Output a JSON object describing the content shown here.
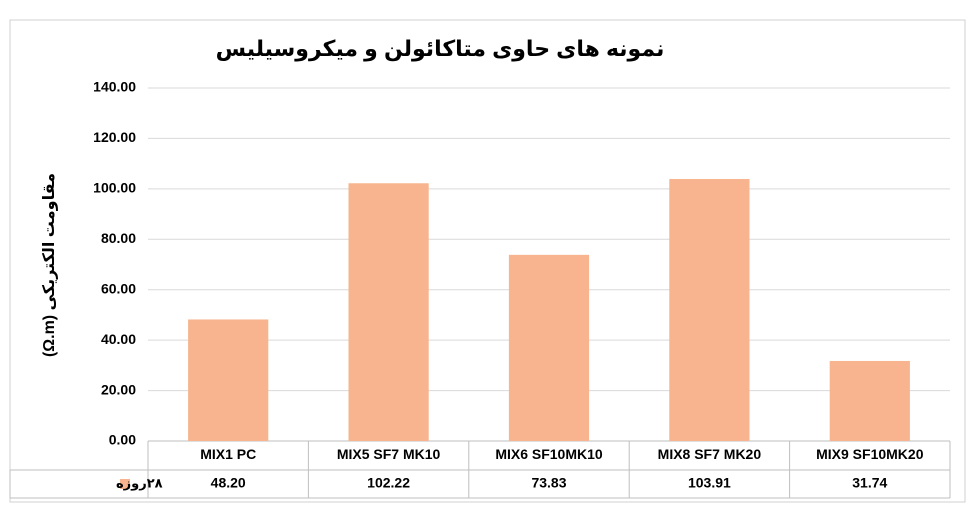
{
  "chart_data": {
    "type": "bar",
    "title": "نمونه های حاوی متاکائولن و میکروسیلیس",
    "y_label": "مقاومت الکتریکی (Ω.m)",
    "categories": [
      "MIX1 PC",
      "MIX5 SF7 MK10",
      "MIX6 SF10MK10",
      "MIX8 SF7 MK20",
      "MIX9 SF10MK20"
    ],
    "series": [
      {
        "name": "۲۸روزه",
        "color": "#f7b48e",
        "values": [
          48.2,
          102.22,
          73.83,
          103.91,
          31.74
        ],
        "value_labels": [
          "48.20",
          "102.22",
          "73.83",
          "103.91",
          "31.74"
        ]
      }
    ],
    "ylim": [
      0,
      140
    ],
    "yticks": [
      {
        "value": 0,
        "label": "0.00"
      },
      {
        "value": 20,
        "label": "20.00"
      },
      {
        "value": 40,
        "label": "40.00"
      },
      {
        "value": 60,
        "label": "60.00"
      },
      {
        "value": 80,
        "label": "80.00"
      },
      {
        "value": 100,
        "label": "100.00"
      },
      {
        "value": 120,
        "label": "120.00"
      },
      {
        "value": 140,
        "label": "140.00"
      }
    ],
    "grid": true
  }
}
